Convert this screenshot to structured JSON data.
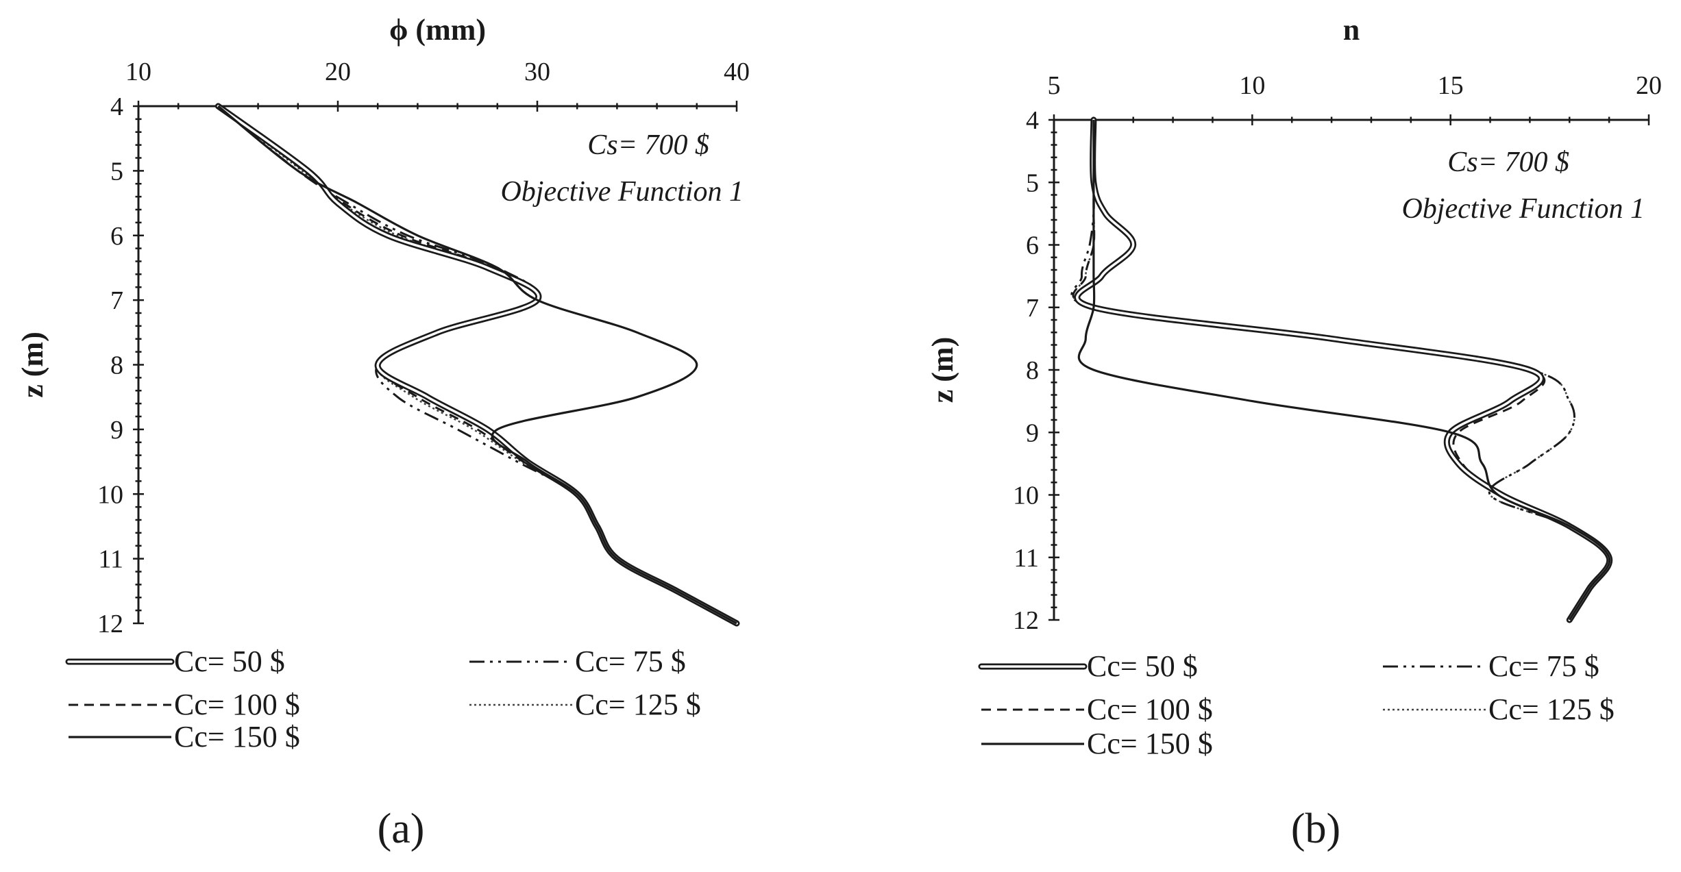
{
  "styles": {
    "cc50": "double",
    "cc75": "dashdotdot",
    "cc100": "dashed",
    "cc125": "dotted",
    "cc150": "solid"
  },
  "chart_data": [
    {
      "type": "line",
      "panel_label": "(a)",
      "xlabel": "ϕ (mm)",
      "ylabel": "z (m)",
      "xlim": [
        10,
        40
      ],
      "ylim": [
        4,
        12
      ],
      "x_ticks": [
        "10",
        "20",
        "30",
        "40"
      ],
      "y_ticks": [
        "4",
        "5",
        "6",
        "7",
        "8",
        "9",
        "10",
        "11",
        "12"
      ],
      "annotation_line1": "Cs= 700  $",
      "annotation_line2": "Objective Function 1",
      "legend": [
        "Cc= 50 $",
        "Cc= 75 $",
        "Cc= 100  $",
        "Cc= 125 $",
        "Cc= 150 $"
      ],
      "series": [
        {
          "name": "Cc= 50 $",
          "style": "double",
          "z": [
            4.0,
            5.0,
            5.5,
            6.0,
            6.5,
            7.0,
            7.5,
            8.0,
            8.5,
            9.0,
            9.5,
            10.0,
            10.5,
            11.0,
            11.5,
            12.0
          ],
          "x": [
            14.0,
            18.5,
            20.0,
            22.5,
            27.5,
            30.0,
            25.0,
            22.0,
            24.5,
            27.5,
            29.5,
            32.0,
            33.0,
            34.0,
            37.0,
            40.0
          ]
        },
        {
          "name": "Cc= 75 $",
          "style": "dashdotdot",
          "z": [
            4.0,
            5.0,
            5.5,
            6.0,
            6.5,
            7.0,
            7.5,
            8.0,
            8.5,
            9.0,
            9.5,
            10.0,
            10.5,
            11.0,
            11.5,
            12.0
          ],
          "x": [
            14.0,
            18.0,
            20.5,
            23.5,
            28.0,
            30.0,
            25.0,
            22.0,
            23.0,
            26.0,
            29.0,
            32.0,
            33.0,
            34.0,
            37.0,
            40.0
          ]
        },
        {
          "name": "Cc= 100  $",
          "style": "dashed",
          "z": [
            4.0,
            5.0,
            5.5,
            6.0,
            6.5,
            7.0,
            7.5,
            8.0,
            8.5,
            9.0,
            9.5,
            10.0,
            10.5,
            11.0,
            11.5,
            12.0
          ],
          "x": [
            14.0,
            18.3,
            20.3,
            23.2,
            27.8,
            30.0,
            25.0,
            22.0,
            24.0,
            27.0,
            29.3,
            32.0,
            33.0,
            34.0,
            37.0,
            40.0
          ]
        },
        {
          "name": "Cc= 125 $",
          "style": "dotted",
          "z": [
            4.0,
            5.0,
            5.5,
            6.0,
            6.5,
            7.0,
            7.5,
            8.0,
            8.5,
            9.0,
            9.5,
            10.0,
            10.5,
            11.0,
            11.5,
            12.0
          ],
          "x": [
            14.0,
            18.2,
            20.2,
            23.0,
            27.6,
            30.0,
            25.0,
            22.0,
            23.8,
            26.8,
            29.2,
            32.0,
            33.0,
            34.0,
            37.0,
            40.0
          ]
        },
        {
          "name": "Cc= 150 $",
          "style": "solid",
          "z": [
            4.0,
            5.0,
            5.5,
            6.0,
            6.5,
            7.0,
            7.5,
            8.0,
            8.5,
            9.0,
            9.5,
            10.0,
            10.5,
            11.0,
            11.5,
            12.0
          ],
          "x": [
            14.0,
            18.0,
            21.0,
            24.0,
            28.0,
            30.0,
            35.0,
            38.0,
            35.0,
            28.0,
            29.5,
            32.0,
            33.0,
            34.0,
            37.0,
            40.0
          ]
        }
      ]
    },
    {
      "type": "line",
      "panel_label": "(b)",
      "xlabel": "n",
      "ylabel": "z (m)",
      "xlim": [
        5,
        20
      ],
      "ylim": [
        4,
        12
      ],
      "x_ticks": [
        "5",
        "10",
        "15",
        "20"
      ],
      "y_ticks": [
        "4",
        "5",
        "6",
        "7",
        "8",
        "9",
        "10",
        "11",
        "12"
      ],
      "annotation_line1": "Cs= 700  $",
      "annotation_line2": "Objective Function 1",
      "legend": [
        "Cc= 50 $",
        "Cc= 75 $",
        "Cc= 100  $",
        "Cc= 125 $",
        "Cc= 150 $"
      ],
      "series": [
        {
          "name": "Cc= 50 $",
          "style": "double",
          "z": [
            4.0,
            5.0,
            5.5,
            6.0,
            6.5,
            7.0,
            7.5,
            8.0,
            8.5,
            9.0,
            9.5,
            10.0,
            10.5,
            11.0,
            11.5,
            12.0
          ],
          "x": [
            6.0,
            6.0,
            6.3,
            7.0,
            6.2,
            6.0,
            12.0,
            17.0,
            16.5,
            15.0,
            15.2,
            16.3,
            18.0,
            19.0,
            18.5,
            18.0
          ]
        },
        {
          "name": "Cc= 75 $",
          "style": "dashdotdot",
          "z": [
            4.0,
            5.0,
            5.5,
            6.0,
            6.5,
            7.0,
            7.5,
            8.0,
            8.5,
            9.0,
            9.5,
            10.0,
            10.5,
            11.0,
            11.5,
            12.0
          ],
          "x": [
            6.0,
            6.0,
            6.0,
            5.9,
            5.7,
            6.0,
            12.0,
            17.0,
            18.0,
            18.0,
            17.0,
            16.0,
            18.0,
            19.0,
            18.5,
            18.0
          ]
        },
        {
          "name": "Cc= 100  $",
          "style": "dashed",
          "z": [
            4.0,
            5.0,
            5.5,
            6.0,
            6.5,
            7.0,
            7.5,
            8.0,
            8.5,
            9.0,
            9.5,
            10.0,
            10.5,
            11.0,
            11.5,
            12.0
          ],
          "x": [
            6.0,
            6.0,
            6.0,
            6.0,
            5.8,
            6.0,
            12.0,
            17.0,
            16.8,
            15.2,
            15.3,
            16.3,
            18.0,
            19.0,
            18.5,
            18.0
          ]
        },
        {
          "name": "Cc= 125 $",
          "style": "dotted",
          "z": [
            4.0,
            5.0,
            5.5,
            6.0,
            6.5,
            7.0,
            7.5,
            8.0,
            8.5,
            9.0,
            9.5,
            10.0,
            10.5,
            11.0,
            11.5,
            12.0
          ],
          "x": [
            6.0,
            6.0,
            6.0,
            6.0,
            5.8,
            6.0,
            12.0,
            17.0,
            18.0,
            18.0,
            17.0,
            16.0,
            18.0,
            19.0,
            18.5,
            18.0
          ]
        },
        {
          "name": "Cc= 150 $",
          "style": "solid",
          "z": [
            4.0,
            5.0,
            5.5,
            6.0,
            6.5,
            7.0,
            7.5,
            8.0,
            8.5,
            9.0,
            9.5,
            10.0,
            10.5,
            11.0,
            11.5,
            12.0
          ],
          "x": [
            6.0,
            6.0,
            6.0,
            6.0,
            6.0,
            6.0,
            5.8,
            6.0,
            10.0,
            15.0,
            15.8,
            16.2,
            18.0,
            19.0,
            18.5,
            18.0
          ]
        }
      ]
    }
  ]
}
